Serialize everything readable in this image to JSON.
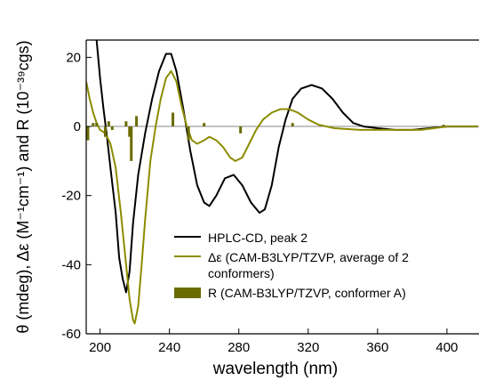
{
  "chart_data": {
    "type": "line",
    "x_label": "wavelength (nm)",
    "y_label": "θ (mdeg), Δε (M⁻¹cm⁻¹) and R (10⁻³⁹cgs)",
    "xlim": [
      192,
      418.5
    ],
    "xticks": [
      200,
      240,
      280,
      320,
      360,
      400
    ],
    "ylim": [
      -60,
      25
    ],
    "yticks": [
      20,
      0,
      -20,
      -40,
      -60
    ],
    "zero_line": true,
    "series": [
      {
        "name": "HPLC-CD, peak 2",
        "color": "#000000",
        "type": "line",
        "x": [
          198,
          200,
          202,
          204,
          206,
          209,
          211,
          213,
          215,
          217,
          219,
          222,
          226,
          230,
          234,
          238,
          241,
          244,
          248,
          252,
          256,
          260,
          263,
          267,
          272,
          277,
          282,
          287,
          292,
          295,
          299,
          303,
          307,
          311,
          316,
          322,
          328,
          334,
          340,
          346,
          352,
          360,
          370,
          380,
          390,
          400,
          418
        ],
        "values": [
          25,
          14,
          5,
          -3,
          -12,
          -25,
          -38,
          -44,
          -48,
          -42,
          -28,
          -14,
          -2,
          8,
          16,
          21,
          21,
          16,
          5,
          -7,
          -17,
          -22,
          -23,
          -20,
          -15,
          -14,
          -17,
          -22,
          -25,
          -24,
          -17,
          -6,
          2,
          8,
          11,
          12,
          11,
          8,
          4,
          1,
          0,
          -0.5,
          -1,
          -1,
          -0.5,
          0,
          0
        ]
      },
      {
        "name": "Δε (CAM-B3LYP/TZVP, average of 2 conformers)",
        "color": "#8c8c00",
        "type": "line",
        "x": [
          192,
          194,
          196,
          198,
          200,
          203,
          206,
          209,
          212,
          215,
          217,
          219,
          220,
          222,
          224,
          226,
          229,
          232,
          235,
          238,
          241,
          244,
          247,
          250,
          253,
          256,
          260,
          263,
          267,
          271,
          275,
          278,
          282,
          286,
          290,
          294,
          299,
          304,
          309,
          314,
          320,
          326,
          335,
          350,
          370,
          385,
          400,
          418
        ],
        "values": [
          13,
          8,
          4,
          1,
          -1,
          -2,
          -5,
          -12,
          -25,
          -40,
          -50,
          -56,
          -57,
          -52,
          -40,
          -27,
          -10,
          0,
          8,
          14,
          16,
          13,
          6,
          0,
          -4,
          -5,
          -4,
          -3,
          -4,
          -6,
          -9,
          -10,
          -9,
          -5,
          -1,
          2,
          4,
          5,
          5,
          4,
          2,
          0.5,
          -0.5,
          -1,
          -1,
          -1,
          0,
          0
        ]
      },
      {
        "name": "R (CAM-B3LYP/TZVP, conformer A)",
        "color": "#6b6b00",
        "type": "bar",
        "x": [
          193,
          196,
          198,
          203,
          205,
          207,
          215,
          217,
          218,
          221,
          242,
          251,
          260,
          281,
          311,
          398
        ],
        "values": [
          -4,
          1,
          1,
          -3,
          1.5,
          -1,
          1.5,
          -3,
          -10,
          3,
          4,
          -4,
          1,
          -2,
          1,
          0.5
        ]
      }
    ]
  }
}
